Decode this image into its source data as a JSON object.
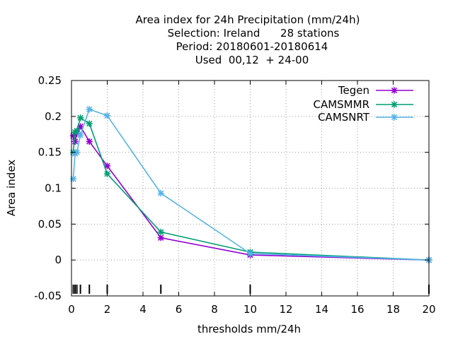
{
  "chart_data": {
    "type": "line",
    "title_lines": [
      "Area index  for 24h Precipitation (mm/24h)",
      "Selection: Ireland      28 stations",
      "Period: 20180601-20180614",
      "Used  00,12  + 24-00"
    ],
    "xlabel": "thresholds mm/24h",
    "ylabel": "Area index",
    "xlim": [
      0,
      20
    ],
    "ylim": [
      -0.05,
      0.25
    ],
    "xticks": [
      0,
      2,
      4,
      6,
      8,
      10,
      12,
      14,
      16,
      18,
      20
    ],
    "yticks": [
      -0.05,
      0,
      0.05,
      0.1,
      0.15,
      0.2,
      0.25
    ],
    "xtick_labels": [
      "0",
      "2",
      "4",
      "6",
      "8",
      "10",
      "12",
      "14",
      "16",
      "18",
      "20"
    ],
    "ytick_labels": [
      "-0.05",
      "0",
      "0.05",
      "0.1",
      "0.15",
      "0.2",
      "0.25"
    ],
    "grid": true,
    "legend_position": "top-right",
    "threshold_marks": [
      0.1,
      0.2,
      0.3,
      0.5,
      1,
      2,
      5,
      10,
      20
    ],
    "series": [
      {
        "name": "Tegen",
        "color": "#9400d3",
        "x": [
          0.1,
          0.2,
          0.3,
          0.5,
          1,
          2,
          5,
          10,
          20
        ],
        "y": [
          0.173,
          0.165,
          0.176,
          0.186,
          0.165,
          0.131,
          0.031,
          0.007,
          0.0
        ]
      },
      {
        "name": "CAMSMMR",
        "color": "#009e73",
        "x": [
          0.1,
          0.2,
          0.3,
          0.5,
          1,
          2,
          5,
          10,
          20
        ],
        "y": [
          0.15,
          0.178,
          0.18,
          0.198,
          0.19,
          0.12,
          0.039,
          0.011,
          0.0
        ]
      },
      {
        "name": "CAMSNRT",
        "color": "#56b4e9",
        "x": [
          0.1,
          0.2,
          0.3,
          0.5,
          1,
          2,
          5,
          10,
          20
        ],
        "y": [
          0.113,
          0.148,
          0.15,
          0.174,
          0.21,
          0.201,
          0.093,
          0.009,
          0.0
        ]
      }
    ]
  }
}
